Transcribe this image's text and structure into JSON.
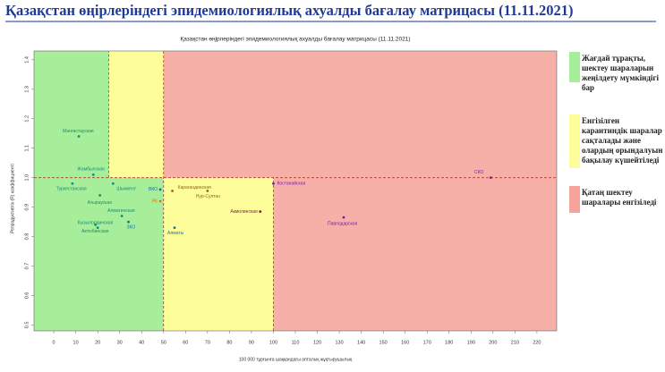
{
  "header": {
    "title": "Қазақстан өңірлеріндегі эпидемиологиялық ахуалды бағалау матрицасы  (11.11.2021)"
  },
  "legend": [
    {
      "color": "#a6ee9a",
      "text": "Жағдай тұрақты, шектеу шараларын жеңілдету мүмкіндігі бар"
    },
    {
      "color": "#fdfd9a",
      "text": "Енгізілген карантиндік шаралар сақталады және олардың орындалуын бақылау күшейтіледі"
    },
    {
      "color": "#f7a29b",
      "text": "Қатаң шектеу шаралары енгізіледі"
    }
  ],
  "chart_data": {
    "type": "scatter",
    "title": "Қазақстан өңірлеріндегі эпидемиологиялық ахуалды бағалау матрицасы  (11.11.2021)",
    "x_label": "100 000 тұрғынға шаққандағы апталық жұқтырушылық",
    "y_label": "Репродуктивтік (R) коэффициенті",
    "labels": [
      "Мангистауская",
      "Жамбылская",
      "Туркестанская",
      "Шымкент",
      "Атырауская",
      "ВКО",
      "РК",
      "Алматинская",
      "Кызылординская",
      "Актюбинская",
      "ЗКО",
      "Карагандинская",
      "Нур-Султан",
      "Алматы",
      "Акмолинская",
      "Костанайская",
      "Павлодарская",
      "СКО"
    ],
    "x": [
      11.4,
      18,
      8.5,
      27,
      21,
      48.5,
      48.5,
      31,
      19,
      20,
      34,
      54,
      70,
      55,
      94,
      100,
      132,
      199
    ],
    "values": [
      1.14,
      1.01,
      0.98,
      0.98,
      0.94,
      0.96,
      0.92,
      0.87,
      0.84,
      0.83,
      0.85,
      0.955,
      0.955,
      0.83,
      0.885,
      0.98,
      0.865,
      1.0
    ],
    "colors": [
      "#1a8a7a",
      "#1a8a7a",
      "#1a8a7a",
      "#1a8a7a",
      "#1a8a7a",
      "#1a6fa8",
      "#e07b00",
      "#1a8a7a",
      "#1a8a7a",
      "#1a8a7a",
      "#1a6fa8",
      "#8a6a1a",
      "#8a6a1a",
      "#1a6fa8",
      "#8a1a5a",
      "#7a1aa8",
      "#7a1aa8",
      "#7a1aa8"
    ],
    "zones": [
      {
        "x": [
          -9,
          50
        ],
        "y": [
          0.48,
          1.43
        ],
        "color": "#a6ee9a"
      },
      {
        "x": [
          25,
          50
        ],
        "y": [
          1,
          1.43
        ],
        "color": "#fdfd9a"
      },
      {
        "x": [
          50,
          100
        ],
        "y": [
          0.48,
          1
        ],
        "color": "#fdfd9a"
      },
      {
        "x": [
          50,
          229
        ],
        "y": [
          1,
          1.43
        ],
        "color": "#f7b0a8"
      },
      {
        "x": [
          100,
          229
        ],
        "y": [
          0.48,
          1
        ],
        "color": "#f7b0a8"
      }
    ],
    "ref_lines": [
      {
        "x": 25,
        "y": [
          1,
          1.43
        ]
      },
      {
        "x": 50,
        "y": [
          0.48,
          1.43
        ]
      },
      {
        "x": 100,
        "y": [
          0.48,
          1
        ]
      },
      {
        "y": 1,
        "x": [
          -9,
          229
        ]
      }
    ],
    "ref_line_color": "#b23a2a",
    "xlim": [
      -9,
      229
    ],
    "ylim": [
      0.48,
      1.43
    ],
    "xticks": [
      0,
      10,
      20,
      30,
      40,
      50,
      60,
      70,
      80,
      90,
      100,
      110,
      120,
      130,
      140,
      150,
      160,
      170,
      180,
      190,
      200,
      210,
      220
    ],
    "yticks": [
      0.5,
      0.6,
      0.7,
      0.8,
      0.9,
      {
        "value": 1,
        "label": "1.0"
      },
      1.1,
      1.2,
      1.3,
      1.4
    ]
  }
}
